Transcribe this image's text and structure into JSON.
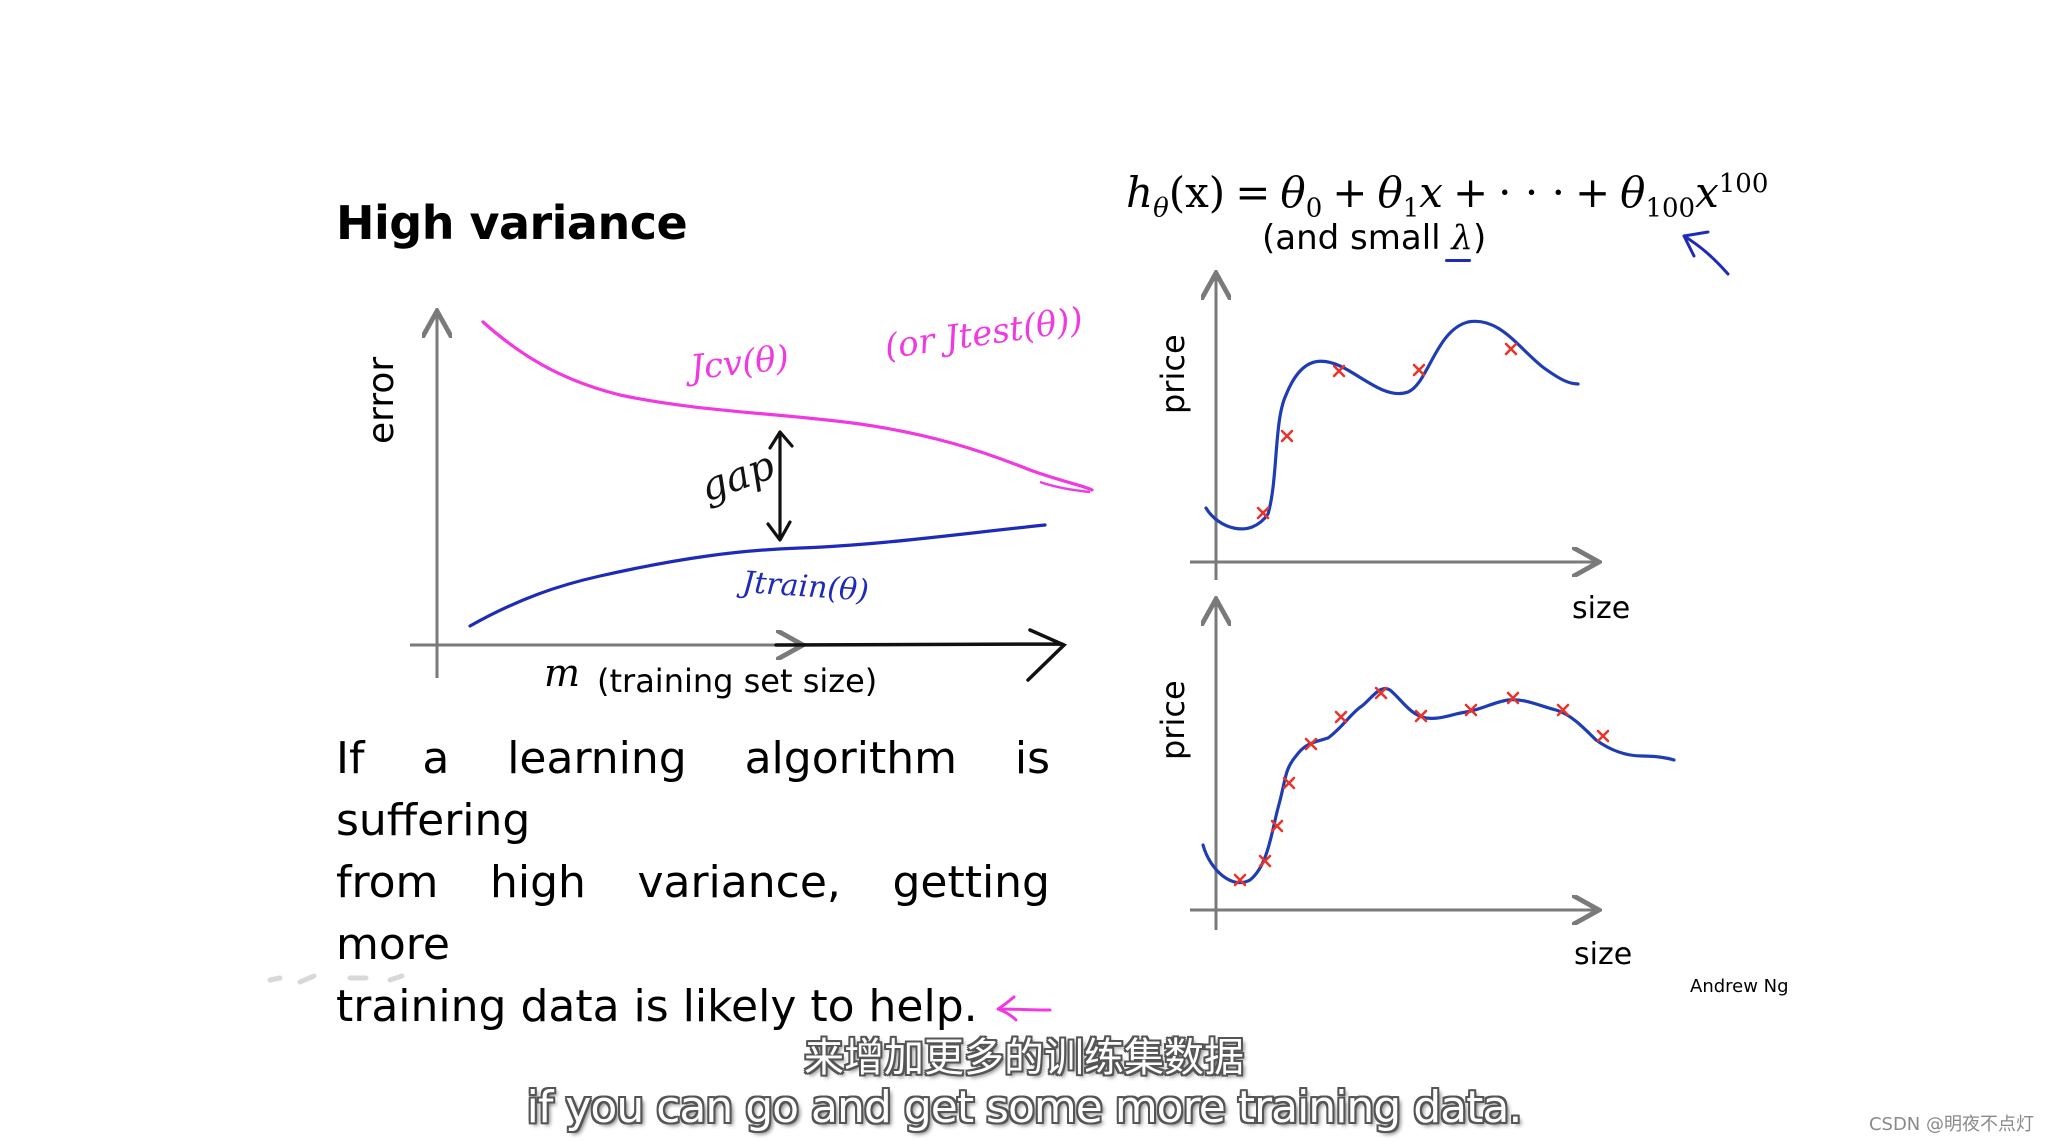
{
  "title": "High variance",
  "left_chart": {
    "ylabel": "error",
    "xlabel_var": "m",
    "xlabel_text": "(training set size)",
    "curve_labels": {
      "cv": "Jcv(θ)",
      "test": "(or Jtest(θ))",
      "train": "Jtrain(θ)",
      "gap": "gap"
    }
  },
  "body_text": {
    "line1": "If a learning algorithm is suffering",
    "line2": "from high variance, getting more",
    "line3": "training data is likely to help."
  },
  "formula": {
    "h": "h",
    "h_sub": "θ",
    "arg": "(x)",
    "eq": "=",
    "t0": "θ",
    "t0_sub": "0",
    "plus": "+",
    "t1": "θ",
    "t1_sub": "1",
    "x": "x",
    "dots": "· · ·",
    "t100": "θ",
    "t100_sub": "100",
    "x2": "x",
    "power": "100",
    "note_prefix": "(and small ",
    "lambda": "λ",
    "note_suffix": ")"
  },
  "right_charts": {
    "top": {
      "ylabel": "price",
      "xlabel": "size"
    },
    "bottom": {
      "ylabel": "price",
      "xlabel": "size"
    }
  },
  "credit": "Andrew Ng",
  "subtitles": {
    "zh": "来增加更多的训练集数据",
    "en": "if you can go and get some more training data."
  },
  "watermark": "CSDN @明夜不点灯",
  "colors": {
    "cv_curve": "#f03ae0",
    "train_curve": "#1e2bb8",
    "fit_curve": "#1e3cb4",
    "data_points": "#e8352a",
    "axes": "#7a7a7a"
  }
}
